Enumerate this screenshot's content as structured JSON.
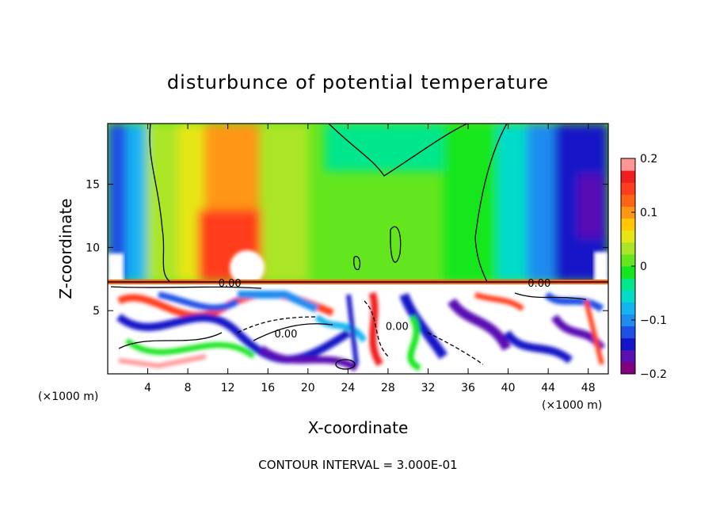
{
  "chart_data": {
    "type": "heatmap",
    "title": "disturbunce of potential temperature",
    "xlabel": "X-coordinate",
    "ylabel": "Z-coordinate",
    "x_unit_left": "(×1000 m)",
    "x_unit_right": "(×1000 m)",
    "xlim": [
      0,
      50
    ],
    "ylim": [
      0,
      19.8
    ],
    "x_ticks": [
      4,
      8,
      12,
      16,
      20,
      24,
      28,
      32,
      36,
      40,
      44,
      48
    ],
    "y_ticks": [
      5,
      10,
      15
    ],
    "colorbar": {
      "range": [
        -0.2,
        0.2
      ],
      "ticks": [
        {
          "value": 0.2,
          "label": "0.2"
        },
        {
          "value": 0.1,
          "label": "0.1"
        },
        {
          "value": 0,
          "label": "0"
        },
        {
          "value": -0.1,
          "label": "−0.1"
        },
        {
          "value": -0.2,
          "label": "−0.2"
        }
      ],
      "colors": [
        "#800080",
        "#5a0fb4",
        "#1414c8",
        "#1e50e6",
        "#1e8cf0",
        "#14b4f0",
        "#00dcc8",
        "#00e68c",
        "#14e61e",
        "#64e61e",
        "#aae628",
        "#e6e614",
        "#ffc800",
        "#ff9614",
        "#ff6414",
        "#ff3c1e",
        "#f01e1e",
        "#ff9696"
      ]
    },
    "contour_labels": [
      {
        "x": 12.2,
        "z": 7.2,
        "text": "0.00"
      },
      {
        "x": 17.8,
        "z": 3.2,
        "text": "0.00"
      },
      {
        "x": 28.9,
        "z": 3.8,
        "text": "0.00"
      },
      {
        "x": 43.1,
        "z": 7.2,
        "text": "0.00"
      }
    ],
    "contour_interval_text": "CONTOUR INTERVAL = 3.000E-01"
  }
}
